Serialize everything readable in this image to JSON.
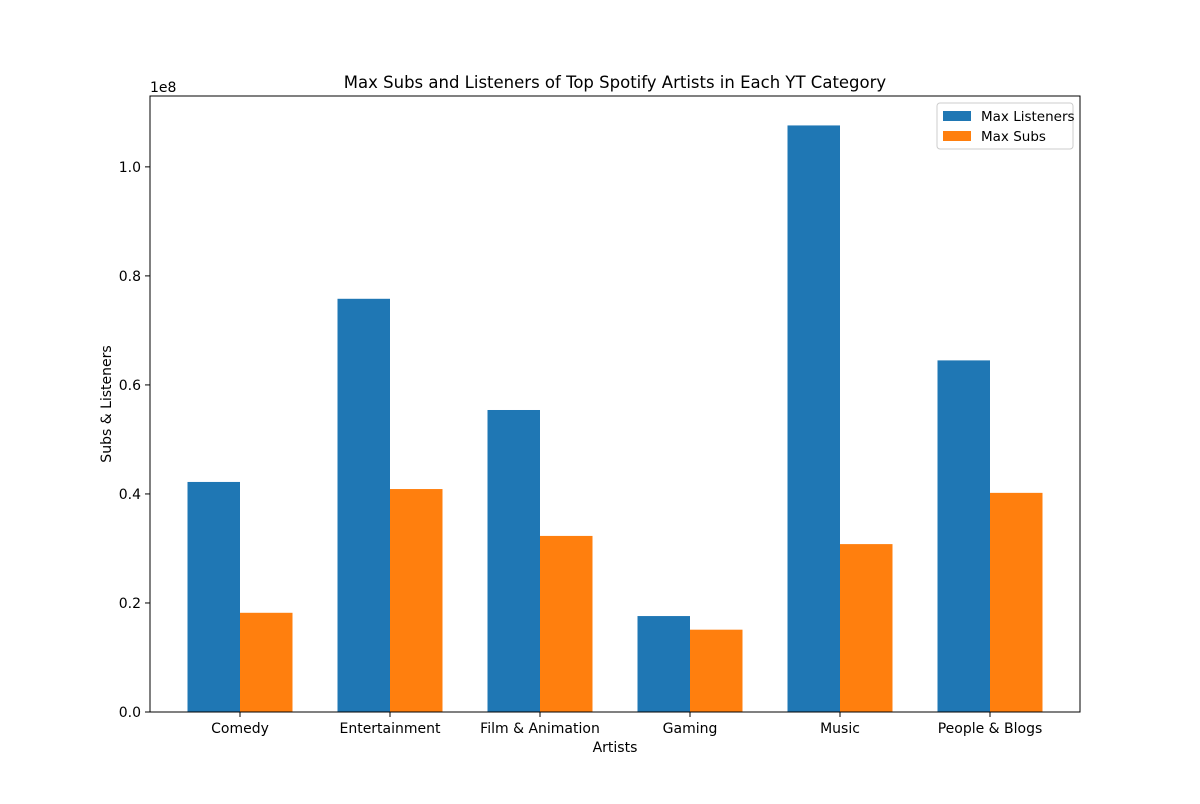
{
  "chart_data": {
    "type": "bar",
    "title": "Max Subs and Listeners of Top Spotify Artists in Each YT Category",
    "xlabel": "Artists",
    "ylabel": "Subs & Listeners",
    "y_offset_label": "1e8",
    "categories": [
      "Comedy",
      "Entertainment",
      "Film & Animation",
      "Gaming",
      "Music",
      "People & Blogs"
    ],
    "series": [
      {
        "name": "Max Listeners",
        "color": "#1f77b4",
        "values": [
          42200000,
          75800000,
          55400000,
          17600000,
          107600000,
          64500000
        ]
      },
      {
        "name": "Max Subs",
        "color": "#ff7f0e",
        "values": [
          18200000,
          40900000,
          32300000,
          15100000,
          30800000,
          40200000
        ]
      }
    ],
    "ylim": [
      0,
      113000000
    ],
    "yticks": [
      0,
      20000000,
      40000000,
      60000000,
      80000000,
      100000000
    ],
    "ytick_labels": [
      "0.0",
      "0.2",
      "0.4",
      "0.6",
      "0.8",
      "1.0"
    ],
    "grid": false,
    "legend_position": "top-right"
  }
}
